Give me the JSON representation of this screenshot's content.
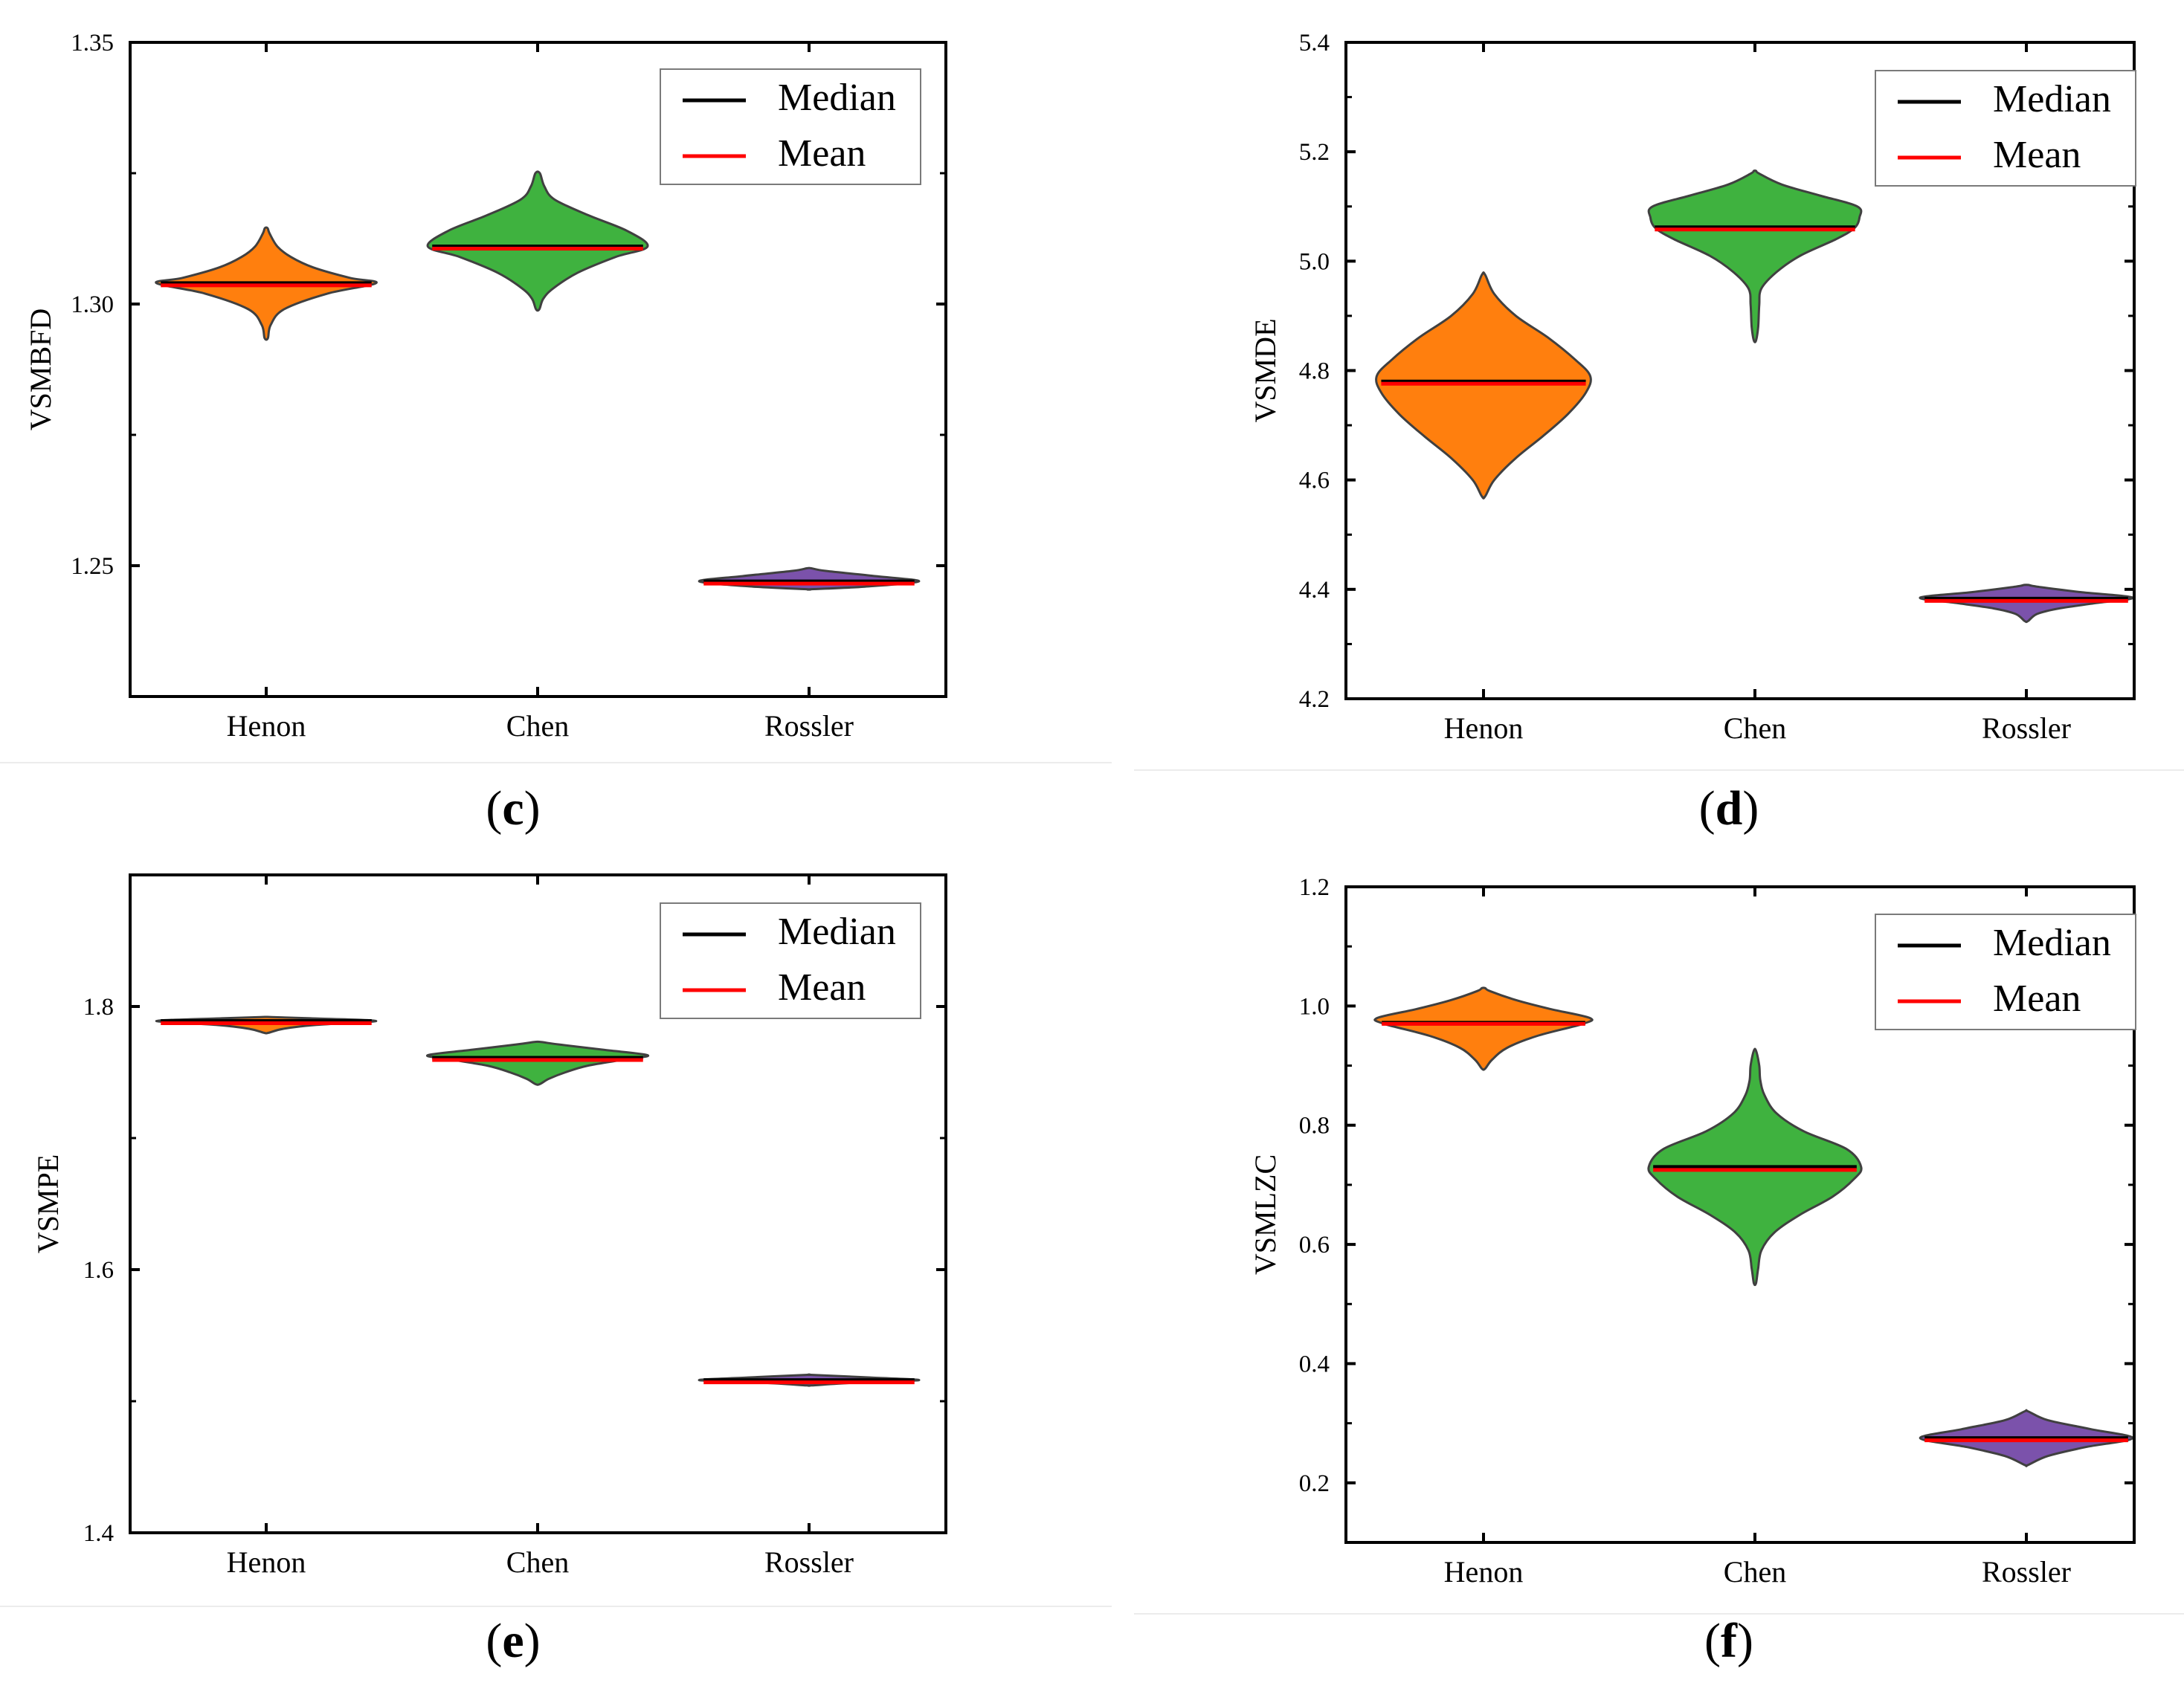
{
  "legend": {
    "median_label": "Median",
    "mean_label": "Mean"
  },
  "colors": {
    "Henon": "#ff7f0e",
    "Chen": "#3fb23f",
    "Rossler": "#7b52ab",
    "median": "#000000",
    "mean": "#ff0000",
    "outline": "#404040"
  },
  "chart_data": [
    {
      "id": "c",
      "type": "violin",
      "panel_label": "c",
      "ylabel": "VSMBFD",
      "ylim": [
        1.225,
        1.35
      ],
      "yticks": [
        1.25,
        1.3,
        1.35
      ],
      "ytick_labels": [
        "1.25",
        "1.30",
        "1.35"
      ],
      "categories": [
        "Henon",
        "Chen",
        "Rossler"
      ],
      "violins": [
        {
          "name": "Henon",
          "median": 1.304,
          "mean": 1.304,
          "profile": [
            [
              1.2935,
              0.015
            ],
            [
              1.296,
              0.04
            ],
            [
              1.299,
              0.16
            ],
            [
              1.302,
              0.55
            ],
            [
              1.304,
              0.985
            ],
            [
              1.305,
              0.75
            ],
            [
              1.307,
              0.42
            ],
            [
              1.309,
              0.22
            ],
            [
              1.311,
              0.1
            ],
            [
              1.3135,
              0.03
            ],
            [
              1.3145,
              0.012
            ]
          ]
        },
        {
          "name": "Chen",
          "median": 1.311,
          "mean": 1.311,
          "profile": [
            [
              1.299,
              0.015
            ],
            [
              1.301,
              0.05
            ],
            [
              1.303,
              0.14
            ],
            [
              1.306,
              0.36
            ],
            [
              1.309,
              0.7
            ],
            [
              1.311,
              0.985
            ],
            [
              1.314,
              0.8
            ],
            [
              1.317,
              0.45
            ],
            [
              1.32,
              0.15
            ],
            [
              1.3225,
              0.06
            ],
            [
              1.325,
              0.02
            ]
          ]
        },
        {
          "name": "Rossler",
          "median": 1.247,
          "mean": 1.247,
          "profile": [
            [
              1.2455,
              0.01
            ],
            [
              1.246,
              0.5
            ],
            [
              1.247,
              0.985
            ],
            [
              1.248,
              0.6
            ],
            [
              1.249,
              0.15
            ],
            [
              1.2495,
              0.02
            ]
          ]
        }
      ]
    },
    {
      "id": "d",
      "type": "violin",
      "panel_label": "d",
      "ylabel": "VSMDE",
      "ylim": [
        4.2,
        5.4
      ],
      "yticks": [
        4.2,
        4.4,
        4.6,
        4.8,
        5.0,
        5.2,
        5.4
      ],
      "ytick_labels": [
        "4.2",
        "4.4",
        "4.6",
        "4.8",
        "5.0",
        "5.2",
        "5.4"
      ],
      "categories": [
        "Henon",
        "Chen",
        "Rossler"
      ],
      "violins": [
        {
          "name": "Henon",
          "median": 4.78,
          "mean": 4.78,
          "profile": [
            [
              4.57,
              0.015
            ],
            [
              4.6,
              0.1
            ],
            [
              4.64,
              0.3
            ],
            [
              4.68,
              0.55
            ],
            [
              4.72,
              0.78
            ],
            [
              4.76,
              0.95
            ],
            [
              4.79,
              0.99
            ],
            [
              4.82,
              0.85
            ],
            [
              4.86,
              0.6
            ],
            [
              4.9,
              0.3
            ],
            [
              4.94,
              0.1
            ],
            [
              4.975,
              0.015
            ]
          ]
        },
        {
          "name": "Chen",
          "median": 5.062,
          "mean": 5.062,
          "profile": [
            [
              4.855,
              0.01
            ],
            [
              4.88,
              0.03
            ],
            [
              4.92,
              0.04
            ],
            [
              4.95,
              0.06
            ],
            [
              4.98,
              0.2
            ],
            [
              5.01,
              0.42
            ],
            [
              5.04,
              0.75
            ],
            [
              5.06,
              0.92
            ],
            [
              5.08,
              0.97
            ],
            [
              5.1,
              0.95
            ],
            [
              5.12,
              0.6
            ],
            [
              5.14,
              0.25
            ],
            [
              5.16,
              0.04
            ],
            [
              5.165,
              0.01
            ]
          ]
        },
        {
          "name": "Rossler",
          "median": 4.383,
          "mean": 4.383,
          "profile": [
            [
              4.342,
              0.015
            ],
            [
              4.355,
              0.1
            ],
            [
              4.365,
              0.3
            ],
            [
              4.375,
              0.65
            ],
            [
              4.385,
              0.985
            ],
            [
              4.395,
              0.5
            ],
            [
              4.405,
              0.1
            ],
            [
              4.408,
              0.02
            ]
          ]
        }
      ]
    },
    {
      "id": "e",
      "type": "violin",
      "panel_label": "e",
      "ylabel": "VSMPE",
      "ylim": [
        1.4,
        1.9
      ],
      "yticks": [
        1.4,
        1.6,
        1.8
      ],
      "ytick_labels": [
        "1.4",
        "1.6",
        "1.8"
      ],
      "categories": [
        "Henon",
        "Chen",
        "Rossler"
      ],
      "violins": [
        {
          "name": "Henon",
          "median": 1.789,
          "mean": 1.789,
          "profile": [
            [
              1.78,
              0.02
            ],
            [
              1.783,
              0.15
            ],
            [
              1.786,
              0.45
            ],
            [
              1.789,
              0.985
            ],
            [
              1.791,
              0.4
            ],
            [
              1.792,
              0.05
            ]
          ]
        },
        {
          "name": "Chen",
          "median": 1.761,
          "mean": 1.761,
          "profile": [
            [
              1.741,
              0.02
            ],
            [
              1.745,
              0.1
            ],
            [
              1.75,
              0.25
            ],
            [
              1.755,
              0.45
            ],
            [
              1.76,
              0.8
            ],
            [
              1.763,
              0.985
            ],
            [
              1.767,
              0.6
            ],
            [
              1.771,
              0.2
            ],
            [
              1.773,
              0.03
            ]
          ]
        },
        {
          "name": "Rossler",
          "median": 1.516,
          "mean": 1.516,
          "profile": [
            [
              1.512,
              0.02
            ],
            [
              1.514,
              0.4
            ],
            [
              1.516,
              0.985
            ],
            [
              1.518,
              0.55
            ],
            [
              1.52,
              0.03
            ]
          ]
        }
      ]
    },
    {
      "id": "f",
      "type": "violin",
      "panel_label": "f",
      "ylabel": "VSMLZC",
      "ylim": [
        0.1,
        1.2
      ],
      "yticks": [
        0.2,
        0.4,
        0.6,
        0.8,
        1.0,
        1.2
      ],
      "ytick_labels": [
        "0.2",
        "0.4",
        "0.6",
        "0.8",
        "1.0",
        "1.2"
      ],
      "categories": [
        "Henon",
        "Chen",
        "Rossler"
      ],
      "violins": [
        {
          "name": "Henon",
          "median": 0.972,
          "mean": 0.97,
          "profile": [
            [
              0.895,
              0.015
            ],
            [
              0.91,
              0.08
            ],
            [
              0.93,
              0.22
            ],
            [
              0.95,
              0.5
            ],
            [
              0.97,
              0.92
            ],
            [
              0.98,
              0.985
            ],
            [
              0.995,
              0.62
            ],
            [
              1.01,
              0.3
            ],
            [
              1.025,
              0.06
            ],
            [
              1.03,
              0.015
            ]
          ]
        },
        {
          "name": "Chen",
          "median": 0.73,
          "mean": 0.725,
          "profile": [
            [
              0.535,
              0.01
            ],
            [
              0.56,
              0.03
            ],
            [
              0.59,
              0.06
            ],
            [
              0.62,
              0.18
            ],
            [
              0.65,
              0.42
            ],
            [
              0.68,
              0.72
            ],
            [
              0.71,
              0.92
            ],
            [
              0.73,
              0.985
            ],
            [
              0.76,
              0.85
            ],
            [
              0.79,
              0.45
            ],
            [
              0.82,
              0.2
            ],
            [
              0.85,
              0.09
            ],
            [
              0.875,
              0.05
            ],
            [
              0.9,
              0.04
            ],
            [
              0.925,
              0.01
            ]
          ]
        },
        {
          "name": "Rossler",
          "median": 0.275,
          "mean": 0.275,
          "profile": [
            [
              0.23,
              0.015
            ],
            [
              0.245,
              0.2
            ],
            [
              0.26,
              0.55
            ],
            [
              0.275,
              0.985
            ],
            [
              0.29,
              0.6
            ],
            [
              0.305,
              0.2
            ],
            [
              0.32,
              0.015
            ]
          ]
        }
      ]
    }
  ]
}
